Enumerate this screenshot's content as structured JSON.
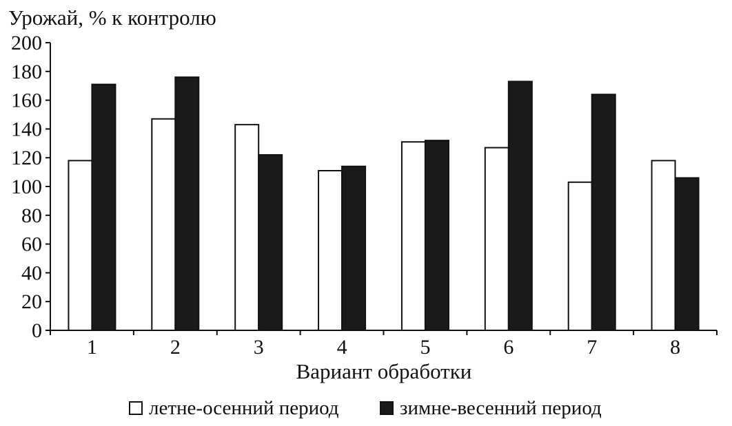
{
  "chart_data": {
    "type": "bar",
    "ylabel": "Урожай, % к контролю",
    "xlabel": "Вариант обработки",
    "categories": [
      "1",
      "2",
      "3",
      "4",
      "5",
      "6",
      "7",
      "8"
    ],
    "series": [
      {
        "name": "летне-осенний период",
        "color": "#ffffff",
        "values": [
          118,
          147,
          143,
          111,
          131,
          127,
          103,
          118
        ]
      },
      {
        "name": "зимне-весенний период",
        "color": "#1a1a1a",
        "values": [
          171,
          176,
          122,
          114,
          132,
          173,
          164,
          106
        ]
      }
    ],
    "ylim": [
      0,
      200
    ],
    "yticks": [
      "0",
      "20",
      "40",
      "60",
      "80",
      "100",
      "120",
      "140",
      "160",
      "180",
      "200"
    ],
    "grid": false,
    "legend_position": "bottom"
  }
}
